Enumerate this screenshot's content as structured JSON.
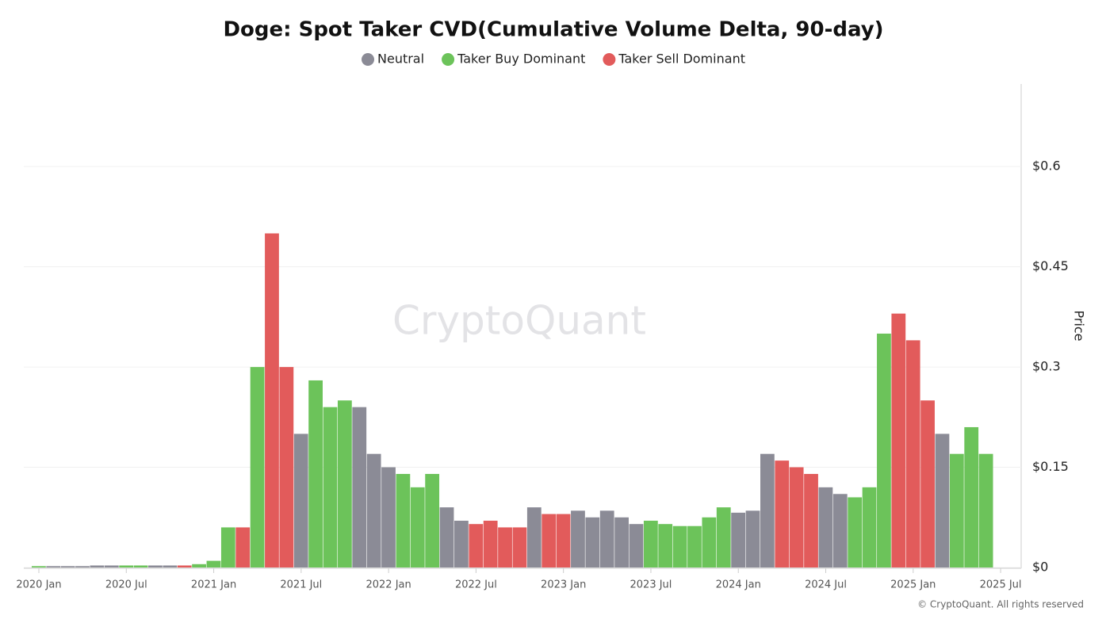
{
  "chart_data": {
    "type": "bar",
    "title": "Doge: Spot Taker CVD(Cumulative Volume Delta, 90-day)",
    "y_axis_label": "Price",
    "watermark": "CryptoQuant",
    "footer": "© CryptoQuant. All rights reserved",
    "x": [
      "2020 Jan",
      "2020 Feb",
      "2020 Mar",
      "2020 Apr",
      "2020 May",
      "2020 Jun",
      "2020 Jul",
      "2020 Aug",
      "2020 Sep",
      "2020 Oct",
      "2020 Nov",
      "2020 Dec",
      "2021 Jan",
      "2021 Feb",
      "2021 Mar",
      "2021 Apr",
      "2021 May",
      "2021 Jun",
      "2021 Jul",
      "2021 Aug",
      "2021 Sep",
      "2021 Oct",
      "2021 Nov",
      "2021 Dec",
      "2022 Jan",
      "2022 Feb",
      "2022 Mar",
      "2022 Apr",
      "2022 May",
      "2022 Jun",
      "2022 Jul",
      "2022 Aug",
      "2022 Sep",
      "2022 Oct",
      "2022 Nov",
      "2022 Dec",
      "2023 Jan",
      "2023 Feb",
      "2023 Mar",
      "2023 Apr",
      "2023 May",
      "2023 Jun",
      "2023 Jul",
      "2023 Aug",
      "2023 Sep",
      "2023 Oct",
      "2023 Nov",
      "2023 Dec",
      "2024 Jan",
      "2024 Feb",
      "2024 Mar",
      "2024 Apr",
      "2024 May",
      "2024 Jun",
      "2024 Jul",
      "2024 Aug",
      "2024 Sep",
      "2024 Oct",
      "2024 Nov",
      "2024 Dec",
      "2025 Jan",
      "2025 Feb",
      "2025 Mar",
      "2025 Apr",
      "2025 May",
      "2025 Jun"
    ],
    "xticks": [
      "2020 Jan",
      "2020 Jul",
      "2021 Jan",
      "2021 Jul",
      "2022 Jan",
      "2022 Jul",
      "2023 Jan",
      "2023 Jul",
      "2024 Jan",
      "2024 Jul",
      "2025 Jan",
      "2025 Jul"
    ],
    "series": [
      {
        "name": "Neutral",
        "color": "#8b8b96",
        "values": [
          null,
          0.002,
          0.002,
          0.002,
          0.003,
          0.003,
          null,
          null,
          0.003,
          0.003,
          null,
          null,
          null,
          null,
          null,
          null,
          null,
          null,
          0.2,
          null,
          null,
          null,
          0.24,
          0.17,
          0.15,
          null,
          null,
          null,
          0.09,
          0.07,
          null,
          null,
          null,
          null,
          0.09,
          null,
          null,
          0.085,
          0.075,
          0.085,
          0.075,
          0.065,
          null,
          null,
          null,
          null,
          null,
          null,
          0.082,
          0.085,
          0.17,
          null,
          null,
          null,
          0.12,
          0.11,
          null,
          null,
          null,
          null,
          null,
          null,
          0.2,
          null,
          null,
          null
        ]
      },
      {
        "name": "Taker Buy Dominant",
        "color": "#6cc35a",
        "values": [
          0.002,
          null,
          null,
          null,
          null,
          null,
          0.003,
          0.003,
          null,
          null,
          null,
          0.005,
          0.01,
          0.06,
          null,
          0.3,
          null,
          null,
          null,
          0.28,
          0.24,
          0.25,
          null,
          null,
          null,
          0.14,
          0.12,
          0.14,
          null,
          null,
          null,
          null,
          null,
          null,
          null,
          null,
          null,
          null,
          null,
          null,
          null,
          null,
          0.07,
          0.065,
          0.062,
          0.062,
          0.075,
          0.09,
          null,
          null,
          null,
          null,
          null,
          null,
          null,
          null,
          0.105,
          0.12,
          0.35,
          null,
          null,
          null,
          null,
          0.17,
          0.21,
          0.17
        ]
      },
      {
        "name": "Taker Sell Dominant",
        "color": "#e25b5b",
        "values": [
          null,
          null,
          null,
          null,
          null,
          null,
          null,
          null,
          null,
          null,
          0.003,
          null,
          null,
          null,
          0.06,
          null,
          0.5,
          0.3,
          null,
          null,
          null,
          null,
          null,
          null,
          null,
          null,
          null,
          null,
          null,
          null,
          0.065,
          0.07,
          0.06,
          0.06,
          null,
          0.08,
          0.08,
          null,
          null,
          null,
          null,
          null,
          null,
          null,
          null,
          null,
          null,
          null,
          null,
          null,
          null,
          0.16,
          0.15,
          0.14,
          null,
          null,
          null,
          null,
          null,
          0.38,
          0.34,
          0.25,
          null,
          null,
          null,
          null
        ]
      }
    ],
    "ylim": [
      0,
      0.72
    ],
    "yticks": [
      {
        "value": 0,
        "label": "$0"
      },
      {
        "value": 0.15,
        "label": "$0.15"
      },
      {
        "value": 0.3,
        "label": "$0.3"
      },
      {
        "value": 0.45,
        "label": "$0.45"
      },
      {
        "value": 0.6,
        "label": "$0.6"
      }
    ],
    "grid": true
  }
}
